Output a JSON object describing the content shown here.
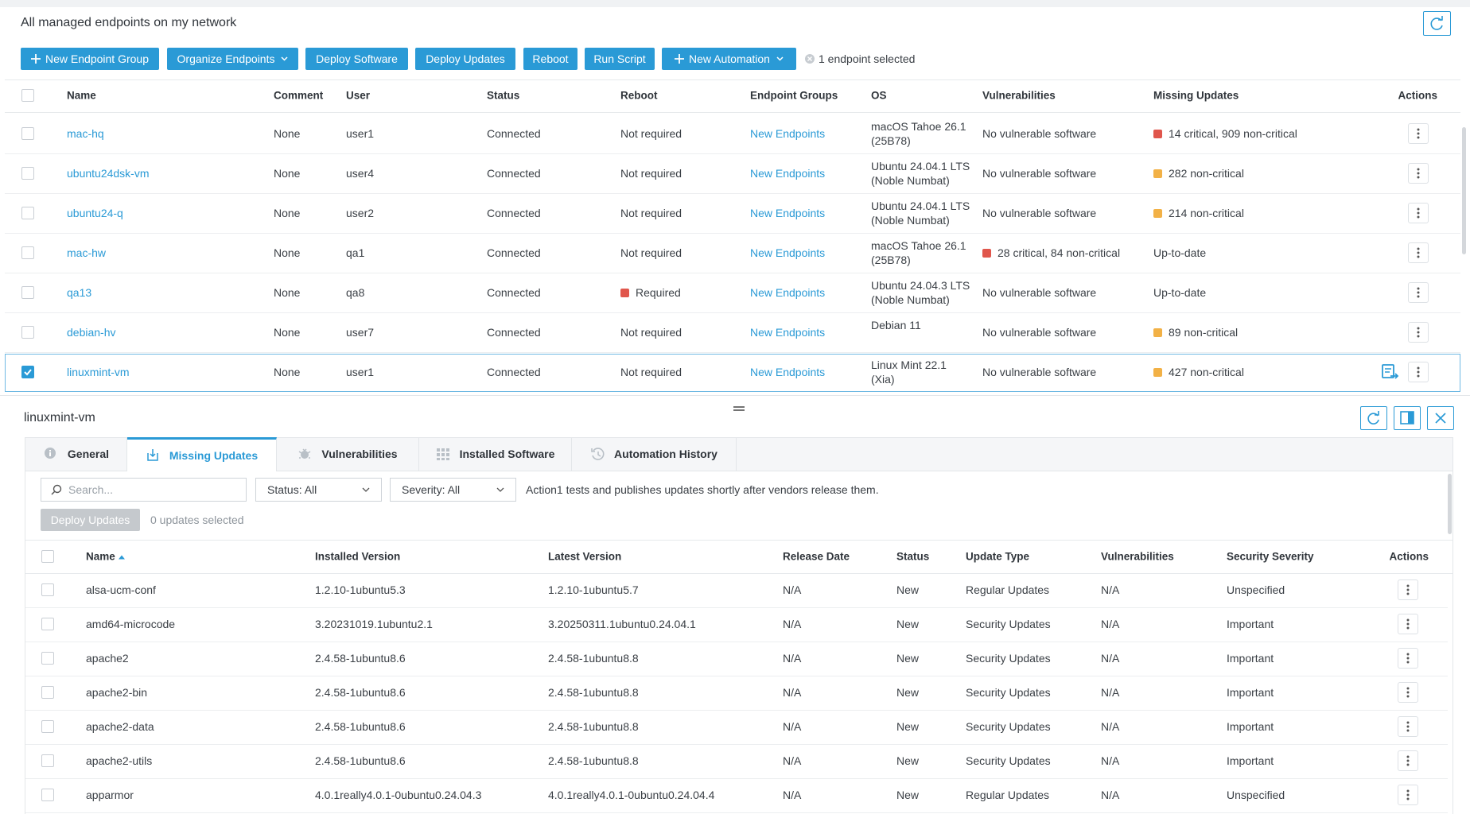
{
  "header": {
    "title": "All managed endpoints on my network"
  },
  "toolbar": {
    "buttons": [
      "New Endpoint Group",
      "Organize Endpoints",
      "Deploy Software",
      "Deploy Updates",
      "Reboot",
      "Run Script",
      "New Automation"
    ],
    "selection": "1 endpoint selected"
  },
  "endpoints": {
    "columns": [
      "Name",
      "Comment",
      "User",
      "Status",
      "Reboot",
      "Endpoint Groups",
      "OS",
      "Vulnerabilities",
      "Missing Updates",
      "Actions"
    ],
    "rows": [
      {
        "name": "mac-hq",
        "comment": "None",
        "user": "user1",
        "status": "Connected",
        "reboot": "Not required",
        "groups": "New Endpoints",
        "os": "macOS Tahoe 26.1 (25B78)",
        "vulnerabilities": "No vulnerable software",
        "missing_updates": "14 critical,  909 non-critical",
        "missing_updates_dot": "#e0564c"
      },
      {
        "name": "ubuntu24dsk-vm",
        "comment": "None",
        "user": "user4",
        "status": "Connected",
        "reboot": "Not required",
        "groups": "New Endpoints",
        "os": "Ubuntu 24.04.1 LTS (Noble Numbat)",
        "vulnerabilities": "No vulnerable software",
        "missing_updates": "282 non-critical",
        "missing_updates_dot": "#f2b146"
      },
      {
        "name": "ubuntu24-q",
        "comment": "None",
        "user": "user2",
        "status": "Connected",
        "reboot": "Not required",
        "groups": "New Endpoints",
        "os": "Ubuntu 24.04.1 LTS (Noble Numbat)",
        "vulnerabilities": "No vulnerable software",
        "missing_updates": "214 non-critical",
        "missing_updates_dot": "#f2b146"
      },
      {
        "name": "mac-hw",
        "comment": "None",
        "user": "qa1",
        "status": "Connected",
        "reboot": "Not required",
        "groups": "New Endpoints",
        "os": "macOS Tahoe 26.1 (25B78)",
        "vulnerabilities": "28 critical,  84 non-critical",
        "vulnerabilities_dot": "#e0564c",
        "missing_updates": "Up-to-date"
      },
      {
        "name": "qa13",
        "comment": "None",
        "user": "qa8",
        "status": "Connected",
        "reboot": "Required",
        "reboot_dot": "#e0564c",
        "groups": "New Endpoints",
        "os": "Ubuntu 24.04.3 LTS (Noble Numbat)",
        "vulnerabilities": "No vulnerable software",
        "missing_updates": "Up-to-date"
      },
      {
        "name": "debian-hv",
        "comment": "None",
        "user": "user7",
        "status": "Connected",
        "reboot": "Not required",
        "groups": "New Endpoints",
        "os": "Debian 11",
        "vulnerabilities": "No vulnerable software",
        "missing_updates": "89 non-critical",
        "missing_updates_dot": "#f2b146"
      },
      {
        "name": "linuxmint-vm",
        "comment": "None",
        "user": "user1",
        "status": "Connected",
        "reboot": "Not required",
        "groups": "New Endpoints",
        "os": "Linux Mint 22.1 (Xia)",
        "vulnerabilities": "No vulnerable software",
        "missing_updates": "427 non-critical",
        "missing_updates_dot": "#f2b146",
        "selected": true
      }
    ]
  },
  "detail": {
    "title": "linuxmint-vm",
    "tabs": [
      "General",
      "Missing Updates",
      "Vulnerabilities",
      "Installed Software",
      "Automation History"
    ],
    "active_tab": 1,
    "search_placeholder": "Search...",
    "filters": [
      "Status: All",
      "Severity: All"
    ],
    "note": "Action1 tests and publishes updates shortly after vendors release them.",
    "deploy_button": "Deploy Updates",
    "selection": "0 updates selected",
    "columns": [
      "Name",
      "Installed Version",
      "Latest Version",
      "Release Date",
      "Status",
      "Update Type",
      "Vulnerabilities",
      "Security Severity",
      "Actions"
    ],
    "rows": [
      [
        "alsa-ucm-conf",
        "1.2.10-1ubuntu5.3",
        "1.2.10-1ubuntu5.7",
        "N/A",
        "New",
        "Regular Updates",
        "N/A",
        "Unspecified"
      ],
      [
        "amd64-microcode",
        "3.20231019.1ubuntu2.1",
        "3.20250311.1ubuntu0.24.04.1",
        "N/A",
        "New",
        "Security Updates",
        "N/A",
        "Important"
      ],
      [
        "apache2",
        "2.4.58-1ubuntu8.6",
        "2.4.58-1ubuntu8.8",
        "N/A",
        "New",
        "Security Updates",
        "N/A",
        "Important"
      ],
      [
        "apache2-bin",
        "2.4.58-1ubuntu8.6",
        "2.4.58-1ubuntu8.8",
        "N/A",
        "New",
        "Security Updates",
        "N/A",
        "Important"
      ],
      [
        "apache2-data",
        "2.4.58-1ubuntu8.6",
        "2.4.58-1ubuntu8.8",
        "N/A",
        "New",
        "Security Updates",
        "N/A",
        "Important"
      ],
      [
        "apache2-utils",
        "2.4.58-1ubuntu8.6",
        "2.4.58-1ubuntu8.8",
        "N/A",
        "New",
        "Security Updates",
        "N/A",
        "Important"
      ],
      [
        "apparmor",
        "4.0.1really4.0.1-0ubuntu0.24.04.3",
        "4.0.1really4.0.1-0ubuntu0.24.04.4",
        "N/A",
        "New",
        "Regular Updates",
        "N/A",
        "Unspecified"
      ]
    ]
  }
}
